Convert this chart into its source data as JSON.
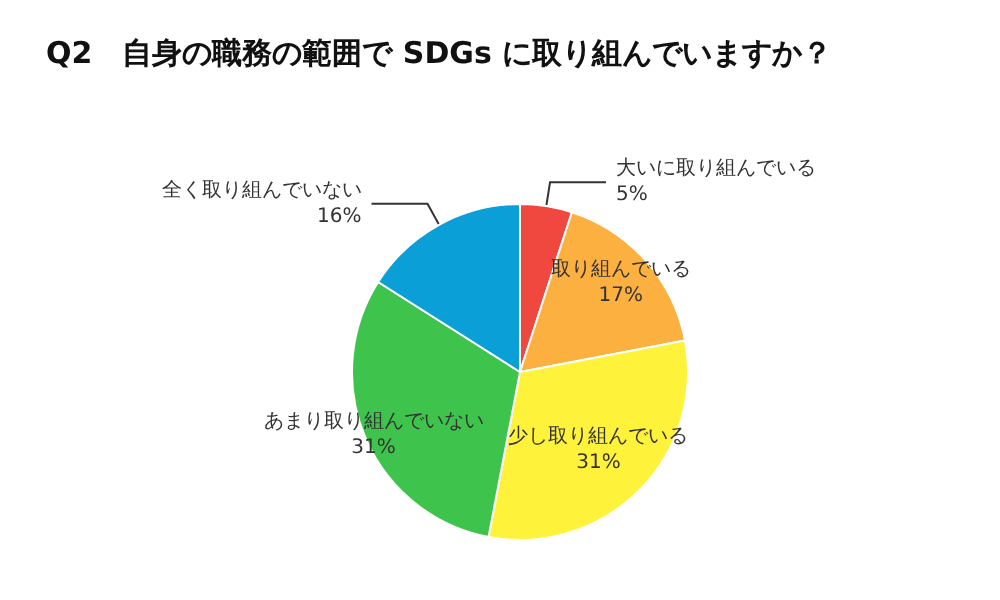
{
  "chart_data": {
    "type": "pie",
    "title": "Q2　自身の職務の範囲で SDGs に取り組んでいますか？",
    "categories": [
      "大いに取り組んでいる",
      "取り組んでいる",
      "少し取り組んでいる",
      "あまり取り組んでいない",
      "全く取り組んでいない"
    ],
    "values": [
      5,
      17,
      31,
      31,
      16
    ],
    "value_labels": [
      "5%",
      "17%",
      "31%",
      "31%",
      "16%"
    ],
    "colors": [
      "#f0483e",
      "#fbb03f",
      "#fff23a",
      "#3ec44c",
      "#0a9fd6"
    ],
    "legend": false
  }
}
